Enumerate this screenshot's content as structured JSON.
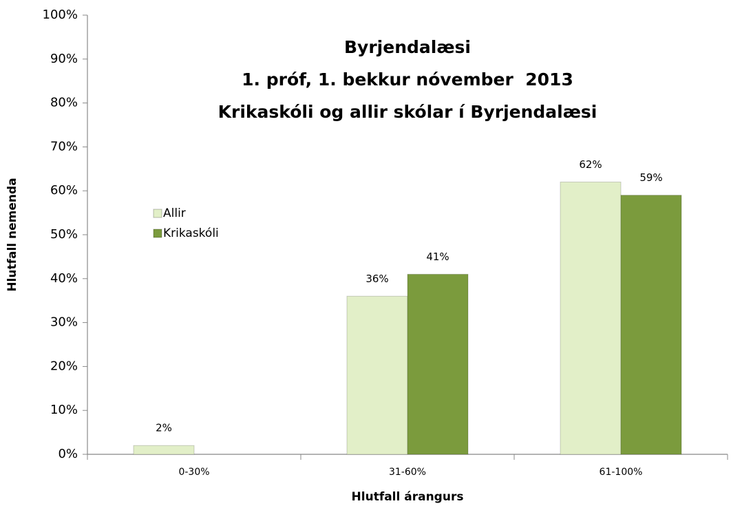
{
  "chart_data": {
    "type": "bar",
    "title": [
      "Byrjendalæsi",
      "1. próf, 1. bekkur nóvember  2013",
      "Krikaskóli og allir skólar í Byrjendalæsi"
    ],
    "x_label": "Hlutfall árangurs",
    "y_label": "Hlutfall nemenda",
    "categories": [
      "0-30%",
      "31-60%",
      "61-100%"
    ],
    "series": [
      {
        "name": "Allir",
        "color": "#e2efc8",
        "values": [
          2,
          36,
          62
        ],
        "value_labels": [
          "2%",
          "36%",
          "62%"
        ]
      },
      {
        "name": "Krikaskóli",
        "color": "#7b9b3d",
        "values": [
          null,
          41,
          59
        ],
        "value_labels": [
          null,
          "41%",
          "59%"
        ]
      }
    ],
    "ylim": [
      0,
      100
    ],
    "yticks": [
      {
        "value": 0,
        "label": "0%"
      },
      {
        "value": 10,
        "label": "10%"
      },
      {
        "value": 20,
        "label": "20%"
      },
      {
        "value": 30,
        "label": "30%"
      },
      {
        "value": 40,
        "label": "40%"
      },
      {
        "value": 50,
        "label": "50%"
      },
      {
        "value": 60,
        "label": "60%"
      },
      {
        "value": 70,
        "label": "70%"
      },
      {
        "value": 80,
        "label": "80%"
      },
      {
        "value": 90,
        "label": "90%"
      },
      {
        "value": 100,
        "label": "100%"
      }
    ],
    "grid": false,
    "legend": "left"
  }
}
